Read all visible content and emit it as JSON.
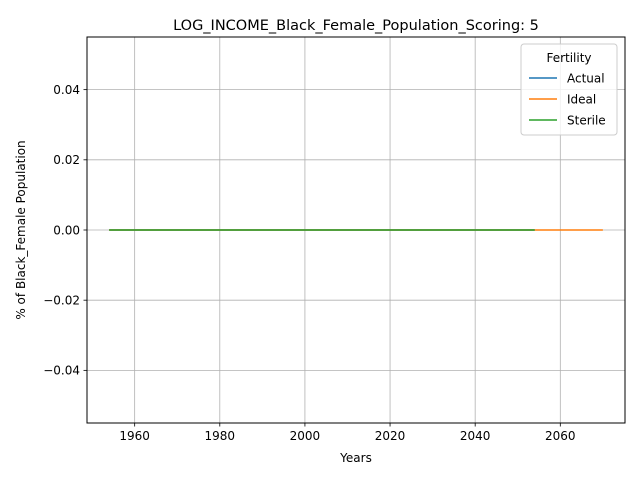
{
  "chart_data": {
    "type": "line",
    "title": "LOG_INCOME_Black_Female_Population_Scoring: 5",
    "xlabel": "Years",
    "ylabel": "% of Black_Female Population",
    "xlim": [
      1948.8,
      2075.2
    ],
    "ylim": [
      -0.055,
      0.055
    ],
    "xticks": [
      1960,
      1980,
      2000,
      2020,
      2040,
      2060
    ],
    "yticks": [
      -0.04,
      -0.02,
      0.0,
      0.02,
      0.04
    ],
    "ytick_labels": [
      "−0.04",
      "−0.02",
      "0.00",
      "0.02",
      "0.04"
    ],
    "grid": true,
    "legend": {
      "title": "Fertility",
      "placement": "top-right"
    },
    "series": [
      {
        "name": "Actual",
        "color": "#1f77b4",
        "x": [
          1954,
          2054
        ],
        "y": [
          0,
          0
        ]
      },
      {
        "name": "Ideal",
        "color": "#ff7f0e",
        "x": [
          1954,
          2070
        ],
        "y": [
          0,
          0
        ]
      },
      {
        "name": "Sterile",
        "color": "#2ca02c",
        "x": [
          1954,
          2054
        ],
        "y": [
          0,
          0
        ]
      }
    ]
  }
}
